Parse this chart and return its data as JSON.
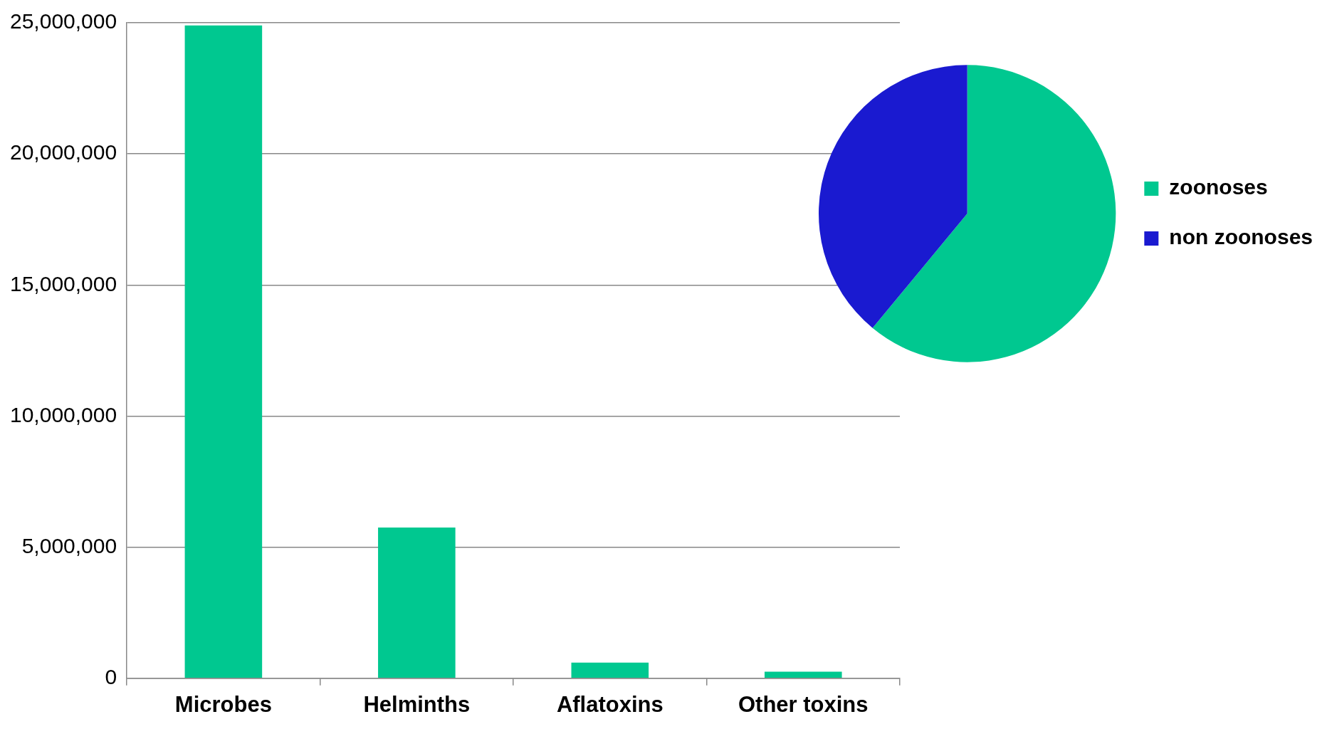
{
  "chart_data": [
    {
      "type": "bar",
      "categories": [
        "Microbes",
        "Helminths",
        "Aflatoxins",
        "Other toxins"
      ],
      "values": [
        24900000,
        5750000,
        600000,
        250000
      ],
      "color": "#00c890",
      "ylim": [
        0,
        25000000
      ],
      "yticks": [
        0,
        {
          "value": 5000000,
          "label": "5,000,000"
        },
        {
          "value": 10000000,
          "label": "10,000,000"
        },
        {
          "value": 15000000,
          "label": "15,000,000"
        },
        {
          "value": 20000000,
          "label": "20,000,000"
        },
        {
          "value": 25000000,
          "label": "25,000,000"
        }
      ],
      "grid": "y",
      "legend": false
    },
    {
      "type": "pie",
      "categories": [
        "zoonoses",
        "non zoonoses"
      ],
      "values": [
        61,
        39
      ],
      "colors": [
        "#00c890",
        "#1a1ad0"
      ],
      "legend": "right"
    }
  ]
}
